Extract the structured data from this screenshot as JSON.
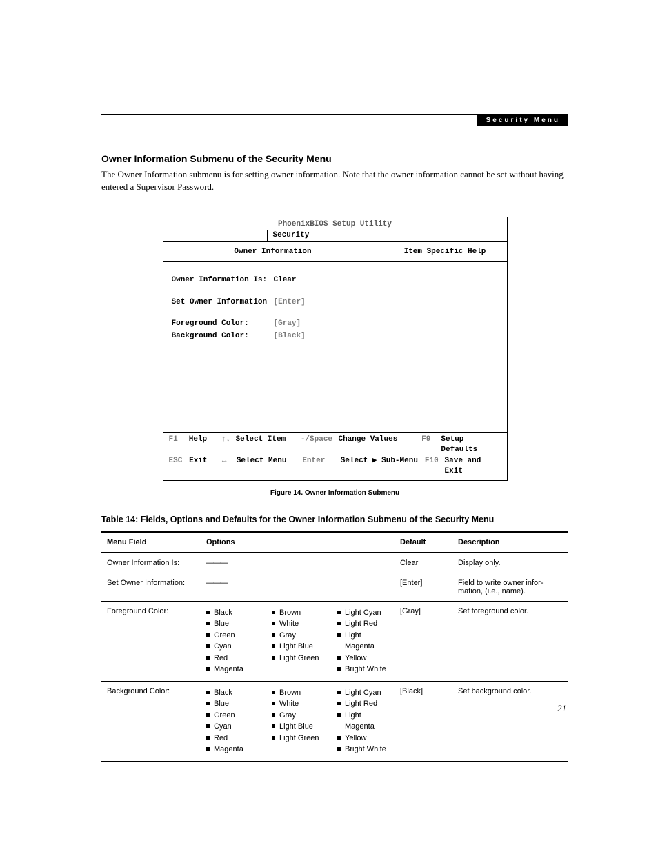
{
  "header": {
    "section_chip": "Security Menu"
  },
  "title": "Owner Information Submenu of the Security Menu",
  "intro": "The Owner Information submenu is for setting owner information. Note that the owner information cannot be set without having entered a Supervisor Password.",
  "bios": {
    "title": "PhoenixBIOS Setup Utility",
    "tab": "Security",
    "left_header": "Owner Information",
    "right_header": "Item Specific Help",
    "rows": [
      {
        "label": "Owner Information Is:",
        "value": "Clear",
        "gray": false
      },
      {
        "label": "Set Owner Information",
        "value": "[Enter]",
        "gray": true
      },
      {
        "label": "Foreground Color:",
        "value": "[Gray]",
        "gray": true
      },
      {
        "label": "Background Color:",
        "value": "[Black]",
        "gray": true
      }
    ],
    "footer": {
      "r1": {
        "k1": "F1",
        "a1": "Help",
        "k2": "↑↓",
        "a2": "Select Item",
        "k3": "-/Space",
        "a3": "Change Values",
        "k4": "F9",
        "a4": "Setup Defaults"
      },
      "r2": {
        "k1": "ESC",
        "a1": "Exit",
        "k2": "↔",
        "a2": "Select Menu",
        "k3": "Enter",
        "a3": "Select ▶ Sub-Menu",
        "k4": "F10",
        "a4": "Save and Exit"
      }
    }
  },
  "figure_caption": "Figure 14.   Owner Information Submenu",
  "table_caption": "Table 14: Fields, Options and Defaults for the Owner Information Submenu of the Security Menu",
  "table": {
    "headers": {
      "menu": "Menu Field",
      "options": "Options",
      "def": "Default",
      "desc": "Description"
    },
    "rows": [
      {
        "menu": "Owner Information Is:",
        "options_dash": true,
        "def": "Clear",
        "desc": "Display only."
      },
      {
        "menu": "Set Owner Information:",
        "options_dash": true,
        "def": "[Enter]",
        "desc": "Field to write owner infor­mation, (i.e., name)."
      },
      {
        "menu": "Foreground Color:",
        "options_cols": [
          [
            "Black",
            "Blue",
            "Green",
            "Cyan",
            "Red",
            "Magenta"
          ],
          [
            "Brown",
            "White",
            "Gray",
            "Light Blue",
            "Light Green"
          ],
          [
            "Light Cyan",
            "Light Red",
            "Light Magenta",
            "Yellow",
            "Bright White"
          ]
        ],
        "def": "[Gray]",
        "desc": "Set foreground color."
      },
      {
        "menu": "Background Color:",
        "options_cols": [
          [
            "Black",
            "Blue",
            "Green",
            "Cyan",
            "Red",
            "Magenta"
          ],
          [
            "Brown",
            "White",
            "Gray",
            "Light Blue",
            "Light Green"
          ],
          [
            "Light Cyan",
            "Light Red",
            "Light Magenta",
            "Yellow",
            "Bright White"
          ]
        ],
        "def": "[Black]",
        "desc": "Set background color."
      }
    ]
  },
  "page_number": "21"
}
